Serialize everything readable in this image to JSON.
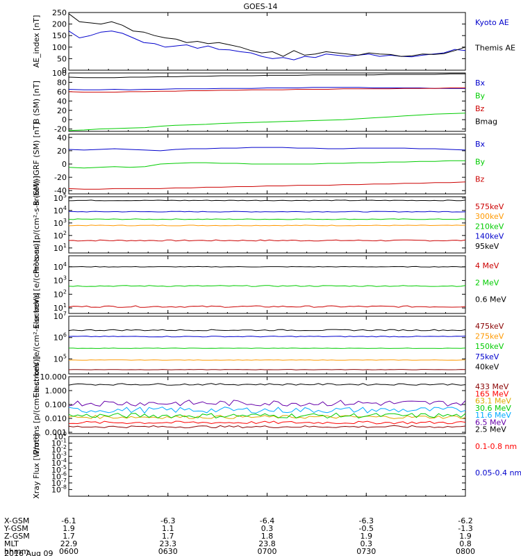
{
  "title": "GOES-14",
  "date": "2016 Aug 09",
  "colors": {
    "black": "#000000",
    "blue": "#0000cc",
    "navy": "#0000aa",
    "green": "#00cc00",
    "red": "#cc0000",
    "orange": "#ff9900",
    "gold": "#ddaa00",
    "cyan": "#00aaff",
    "purple": "#6600aa",
    "darkred": "#880000",
    "lightred": "#ff0000",
    "medblue": "#3366ff"
  },
  "chart_data": [
    {
      "type": "line",
      "ylabel": "AE_index [nT]",
      "ylim": [
        0,
        250
      ],
      "yticks": [
        "250",
        "200",
        "150",
        "100",
        "50",
        "0"
      ],
      "series": [
        {
          "name": "Kyoto AE",
          "color": "#0000cc",
          "values": [
            170,
            140,
            150,
            165,
            170,
            160,
            140,
            120,
            115,
            100,
            105,
            110,
            95,
            105,
            90,
            88,
            80,
            75,
            60,
            50,
            55,
            45,
            60,
            55,
            70,
            65,
            60,
            65,
            70,
            60,
            65,
            60,
            58,
            65,
            70,
            75,
            90,
            85
          ]
        },
        {
          "name": "Themis AE",
          "color": "#000000",
          "values": [
            245,
            210,
            205,
            200,
            210,
            195,
            170,
            165,
            150,
            140,
            135,
            120,
            125,
            115,
            120,
            110,
            100,
            85,
            75,
            80,
            60,
            85,
            65,
            70,
            80,
            75,
            70,
            65,
            75,
            70,
            68,
            60,
            62,
            70,
            68,
            72,
            85,
            100
          ]
        }
      ]
    },
    {
      "type": "line",
      "ylabel": "B (SM) [nT]",
      "ylim": [
        -25,
        100
      ],
      "yticks": [
        "100",
        "80",
        "60",
        "40",
        "20",
        "0",
        "-20"
      ],
      "series": [
        {
          "name": "Bx",
          "color": "#0000cc",
          "values": [
            65,
            64,
            64,
            65,
            64,
            65,
            65,
            66,
            66,
            66,
            67,
            67,
            67,
            68,
            68,
            68,
            69,
            69,
            69,
            69,
            68,
            68,
            68,
            68,
            67,
            67,
            67
          ]
        },
        {
          "name": "By",
          "color": "#00cc00",
          "values": [
            -23,
            -22,
            -20,
            -19,
            -18,
            -17,
            -14,
            -12,
            -11,
            -10,
            -8,
            -7,
            -6,
            -5,
            -4,
            -3,
            -2,
            -1,
            0,
            2,
            4,
            6,
            8,
            10,
            12,
            13,
            14
          ]
        },
        {
          "name": "Bz",
          "color": "#cc0000",
          "values": [
            60,
            59,
            59,
            59,
            60,
            60,
            61,
            61,
            62,
            62,
            63,
            63,
            64,
            64,
            64,
            65,
            65,
            65,
            66,
            66,
            66,
            66,
            67,
            67,
            67,
            68,
            68
          ]
        },
        {
          "name": "Bmag",
          "color": "#000000",
          "values": [
            91,
            90,
            90,
            90,
            91,
            91,
            92,
            92,
            93,
            93,
            94,
            94,
            94,
            95,
            95,
            95,
            96,
            96,
            96,
            96,
            96,
            97,
            97,
            97,
            97,
            98,
            98
          ]
        }
      ]
    },
    {
      "type": "line",
      "ylabel": "B (SM)-IGRF (SM) [nT]",
      "ylim": [
        -45,
        45
      ],
      "yticks": [
        "40",
        "20",
        "0",
        "-20",
        "-40"
      ],
      "series": [
        {
          "name": "Bx",
          "color": "#0000cc",
          "values": [
            22,
            21,
            22,
            23,
            22,
            21,
            20,
            22,
            23,
            23,
            24,
            24,
            25,
            25,
            25,
            24,
            24,
            23,
            23,
            24,
            24,
            24,
            24,
            23,
            23,
            22,
            21
          ]
        },
        {
          "name": "By",
          "color": "#00cc00",
          "values": [
            -5,
            -6,
            -5,
            -4,
            -5,
            -4,
            0,
            1,
            2,
            2,
            1,
            1,
            0,
            0,
            0,
            0,
            0,
            1,
            1,
            2,
            2,
            3,
            3,
            4,
            4,
            5,
            5
          ]
        },
        {
          "name": "Bz",
          "color": "#cc0000",
          "values": [
            -37,
            -38,
            -38,
            -37,
            -37,
            -37,
            -37,
            -36,
            -36,
            -35,
            -35,
            -34,
            -34,
            -33,
            -33,
            -32,
            -32,
            -32,
            -31,
            -31,
            -30,
            -30,
            -29,
            -29,
            -28,
            -28,
            -27
          ]
        }
      ]
    },
    {
      "type": "line",
      "log": true,
      "ylabel": "Protons [p/(cm²-s-sr-keV)]",
      "ylim_exp": [
        0.6,
        5.1
      ],
      "yticks": [
        "10^5",
        "10^4",
        "10^3",
        "10^2",
        "10^1"
      ],
      "series": [
        {
          "name": "575keV",
          "color": "#cc0000",
          "base": 1.6,
          "jitter": 0.05
        },
        {
          "name": "300keV",
          "color": "#ff9900",
          "base": 2.8,
          "jitter": 0.03
        },
        {
          "name": "210keV",
          "color": "#00cc00",
          "base": 3.3,
          "jitter": 0.03
        },
        {
          "name": "140keV",
          "color": "#0000cc",
          "base": 3.9,
          "jitter": 0.03
        },
        {
          "name": "95keV",
          "color": "#000000",
          "base": 4.8,
          "jitter": 0.03
        }
      ]
    },
    {
      "type": "line",
      "log": true,
      "ylabel": "Electrons [e/(cm²-s-sr)]",
      "ylim_exp": [
        0.6,
        4.8
      ],
      "yticks": [
        "10^4",
        "10^3",
        "10^2",
        "10^1"
      ],
      "series": [
        {
          "name": "4 MeV",
          "color": "#cc0000",
          "base": 1.1,
          "jitter": 0.06
        },
        {
          "name": "2 MeV",
          "color": "#00cc00",
          "base": 2.6,
          "jitter": 0.04
        },
        {
          "name": "0.6 MeV",
          "color": "#000000",
          "base": 4.0,
          "jitter": 0.02
        }
      ]
    },
    {
      "type": "line",
      "log": true,
      "ylabel": "Electrons [e/(cm²-s-sr-keV)]",
      "ylim_exp": [
        4.3,
        7.0
      ],
      "yticks": [
        "10^7",
        "10^6",
        "10^5"
      ],
      "series": [
        {
          "name": "475keV",
          "color": "#880000",
          "base": 4.5,
          "jitter": 0.01
        },
        {
          "name": "275keV",
          "color": "#ff9900",
          "base": 4.95,
          "jitter": 0.01
        },
        {
          "name": "150keV",
          "color": "#00cc00",
          "base": 5.5,
          "jitter": 0.01
        },
        {
          "name": "75keV",
          "color": "#0000cc",
          "base": 6.05,
          "jitter": 0.02
        },
        {
          "name": "40keV",
          "color": "#000000",
          "base": 6.35,
          "jitter": 0.03
        }
      ]
    },
    {
      "type": "line",
      "log": true,
      "ylabel": "Protons [p/(cm²-s-sr-keV)]",
      "ylim_exp": [
        -3.1,
        1.0
      ],
      "yticks": [
        "10.000",
        "1.000",
        "0.100",
        "0.010",
        "0.001"
      ],
      "series": [
        {
          "name": "433 MeV",
          "color": "#880000",
          "base": -2.6,
          "jitter": 0.08
        },
        {
          "name": "165 MeV",
          "color": "#ff0000",
          "base": -2.3,
          "jitter": 0.1
        },
        {
          "name": "63.1 MeV",
          "color": "#ddaa00",
          "base": -1.9,
          "jitter": 0.12
        },
        {
          "name": "30.6 MeV",
          "color": "#00cc00",
          "base": -1.8,
          "jitter": 0.18
        },
        {
          "name": "11.6 MeV",
          "color": "#00aaff",
          "base": -1.4,
          "jitter": 0.22
        },
        {
          "name": "6.5 MeV",
          "color": "#6600aa",
          "base": -0.9,
          "jitter": 0.22
        },
        {
          "name": "2.5 MeV",
          "color": "#000000",
          "base": 0.45,
          "jitter": 0.06
        }
      ]
    },
    {
      "type": "line",
      "log": true,
      "ylabel": "Xray Flux [W/m²]",
      "ylim_exp": [
        -9,
        0
      ],
      "yticks": [
        "10^0",
        "10^-1",
        "10^-2",
        "10^-3",
        "10^-4",
        "10^-5",
        "10^-6",
        "10^-7",
        "10^-8"
      ],
      "series": [
        {
          "name": "0.1-0.8 nm",
          "color": "#ff0000"
        },
        {
          "name": "0.05-0.4 nm",
          "color": "#0000cc"
        }
      ]
    }
  ],
  "xaxis": {
    "rows": [
      {
        "label": "X-GSM",
        "values": [
          "-6.1",
          "-6.3",
          "-6.4",
          "-6.3",
          "-6.2"
        ]
      },
      {
        "label": "Y-GSM",
        "values": [
          "1.9",
          "1.1",
          "0.3",
          "-0.5",
          "-1.3"
        ]
      },
      {
        "label": "Z-GSM",
        "values": [
          "1.7",
          "1.7",
          "1.8",
          "1.9",
          "1.9"
        ]
      },
      {
        "label": "MLT",
        "values": [
          "22.9",
          "23.3",
          "23.8",
          "0.3",
          "0.8"
        ]
      },
      {
        "label": "hhmm",
        "values": [
          "0600",
          "0630",
          "0700",
          "0730",
          "0800"
        ]
      }
    ]
  }
}
